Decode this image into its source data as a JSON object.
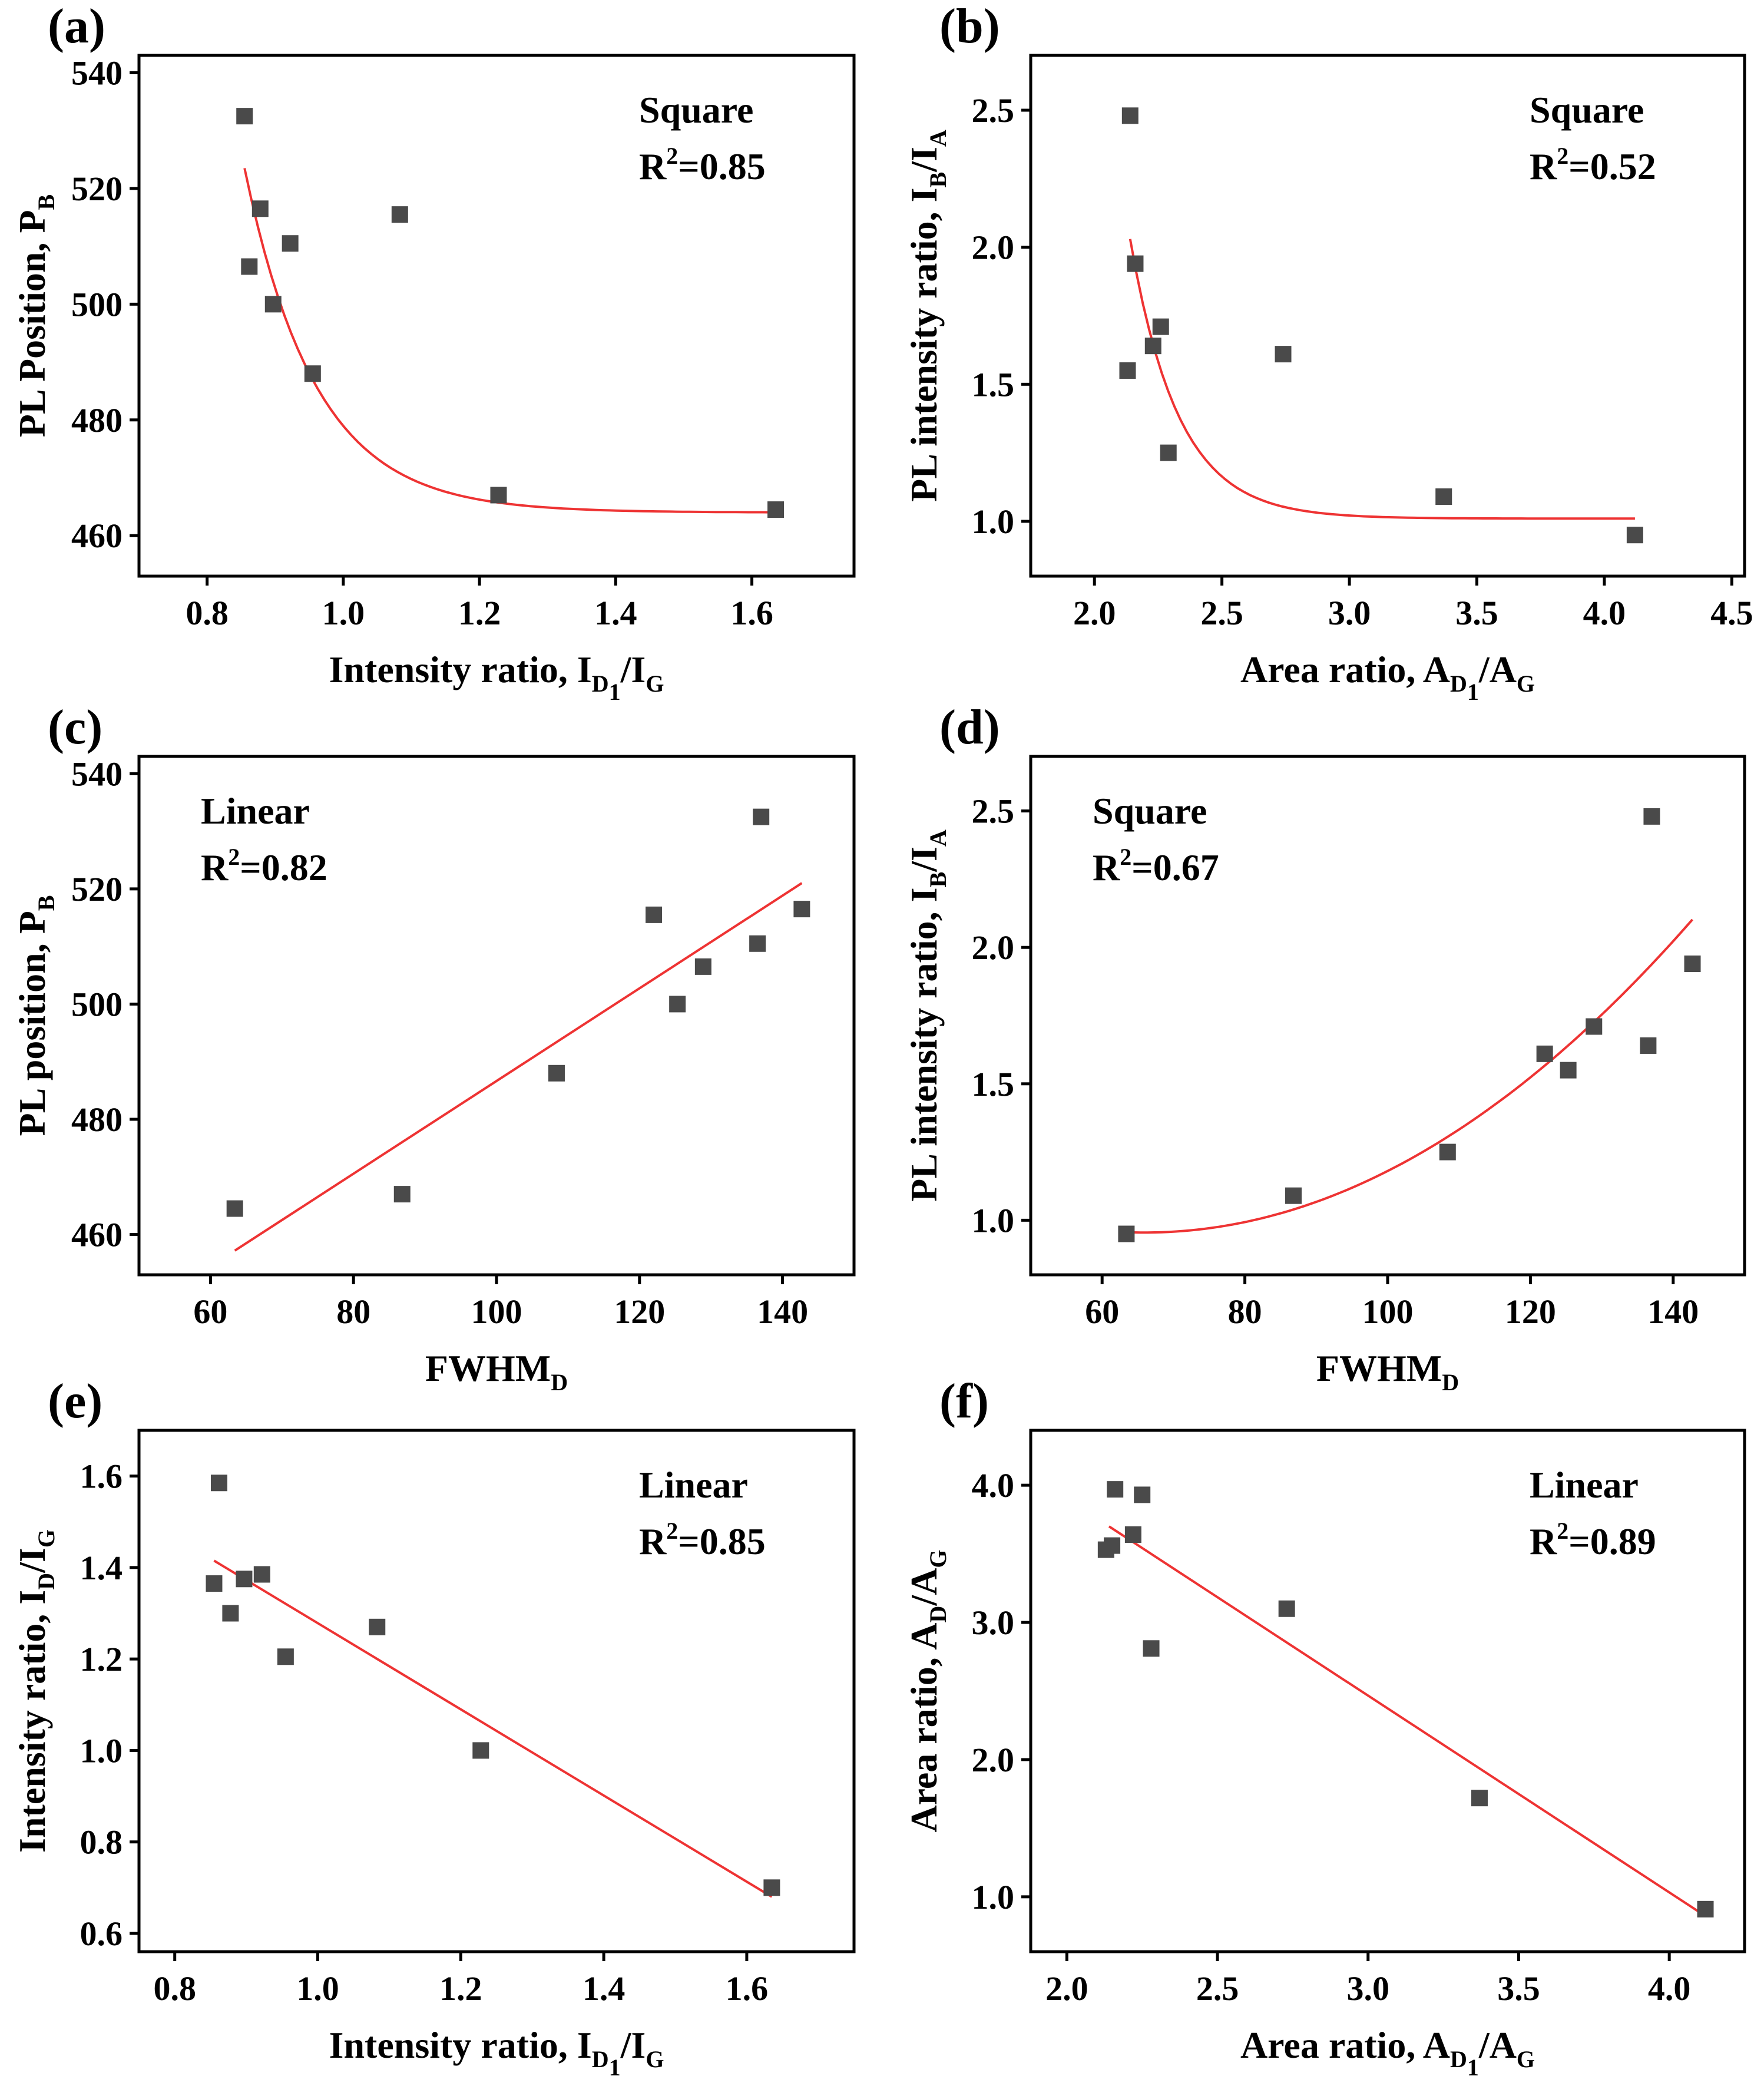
{
  "chart_data": [
    {
      "panel": "(a)",
      "type": "scatter",
      "xlabel": {
        "base": "Intensity ratio, I",
        "sub1": "D",
        "sub1sub": "1",
        "rest": "/I",
        "sub2": "G"
      },
      "ylabel": {
        "base": "PL Position, P",
        "sub": "B"
      },
      "xlim": [
        0.7,
        1.75
      ],
      "ylim": [
        453,
        543
      ],
      "xticks": [
        0.8,
        1.0,
        1.2,
        1.4,
        1.6
      ],
      "xtick_labels": [
        "0.8",
        "1.0",
        "1.2",
        "1.4",
        "1.6"
      ],
      "yticks": [
        460,
        480,
        500,
        520,
        540
      ],
      "ytick_labels": [
        "460",
        "480",
        "500",
        "520",
        "540"
      ],
      "annotation": {
        "fit": "Square",
        "r2_label": "R",
        "r2_sup": "2",
        "r2_value": "=0.85",
        "position": "top-right"
      },
      "points": {
        "x": [
          0.855,
          0.862,
          0.878,
          0.897,
          0.922,
          0.955,
          1.083,
          1.228,
          1.635
        ],
        "y": [
          532.5,
          506.5,
          516.5,
          500.0,
          510.5,
          488.0,
          515.5,
          467.0,
          464.5
        ]
      },
      "fit": {
        "model": "exp",
        "x_range": [
          0.855,
          1.635
        ],
        "a": 464,
        "b": 59.5,
        "c": 0.105
      }
    },
    {
      "panel": "(b)",
      "type": "scatter",
      "xlabel": {
        "base": "Area ratio, A",
        "sub1": "D",
        "sub1sub": "1",
        "rest": "/A",
        "sub2": "G"
      },
      "ylabel": {
        "base": "PL intensity ratio, I",
        "sub": "B",
        "rest": "/I",
        "sub2": "A"
      },
      "xlim": [
        1.75,
        4.55
      ],
      "ylim": [
        0.8,
        2.7
      ],
      "xticks": [
        2.0,
        2.5,
        3.0,
        3.5,
        4.0,
        4.5
      ],
      "xtick_labels": [
        "2.0",
        "2.5",
        "3.0",
        "3.5",
        "4.0",
        "4.5"
      ],
      "yticks": [
        1.0,
        1.5,
        2.0,
        2.5
      ],
      "ytick_labels": [
        "1.0",
        "1.5",
        "2.0",
        "2.5"
      ],
      "annotation": {
        "fit": "Square",
        "r2_label": "R",
        "r2_sup": "2",
        "r2_value": "=0.52",
        "position": "top-right"
      },
      "points": {
        "x": [
          2.14,
          2.16,
          2.13,
          2.23,
          2.26,
          2.29,
          2.74,
          3.37,
          4.12
        ],
        "y": [
          2.48,
          1.94,
          1.55,
          1.64,
          1.71,
          1.25,
          1.61,
          1.09,
          0.95
        ]
      },
      "fit": {
        "model": "exp",
        "x_range": [
          2.14,
          4.12
        ],
        "a": 1.01,
        "b": 1.02,
        "c": 0.19
      }
    },
    {
      "panel": "(c)",
      "type": "scatter",
      "xlabel": {
        "base": "FWHM",
        "sub": "D"
      },
      "ylabel": {
        "base": "PL position, P",
        "sub": "B"
      },
      "xlim": [
        50,
        150
      ],
      "ylim": [
        453,
        543
      ],
      "xticks": [
        60,
        80,
        100,
        120,
        140
      ],
      "xtick_labels": [
        "60",
        "80",
        "100",
        "120",
        "140"
      ],
      "yticks": [
        460,
        480,
        500,
        520,
        540
      ],
      "ytick_labels": [
        "460",
        "480",
        "500",
        "520",
        "540"
      ],
      "annotation": {
        "fit": "Linear",
        "r2_label": "R",
        "r2_sup": "2",
        "r2_value": "=0.82",
        "position": "top-left"
      },
      "points": {
        "x": [
          63.4,
          86.8,
          108.4,
          122.0,
          125.3,
          128.9,
          136.5,
          137.0,
          142.7
        ],
        "y": [
          464.5,
          467.0,
          488.0,
          515.5,
          500.0,
          506.5,
          510.5,
          532.5,
          516.5
        ]
      },
      "fit": {
        "model": "linear",
        "x_range": [
          63.4,
          142.7
        ],
        "y_range": [
          457.2,
          521.0
        ]
      }
    },
    {
      "panel": "(d)",
      "type": "scatter",
      "xlabel": {
        "base": "FWHM",
        "sub": "D"
      },
      "ylabel": {
        "base": "PL intensity ratio, I",
        "sub": "B",
        "rest": "/I",
        "sub2": "A"
      },
      "xlim": [
        50,
        150
      ],
      "ylim": [
        0.8,
        2.7
      ],
      "xticks": [
        60,
        80,
        100,
        120,
        140
      ],
      "xtick_labels": [
        "60",
        "80",
        "100",
        "120",
        "140"
      ],
      "yticks": [
        1.0,
        1.5,
        2.0,
        2.5
      ],
      "ytick_labels": [
        "1.0",
        "1.5",
        "2.0",
        "2.5"
      ],
      "annotation": {
        "fit": "Square",
        "r2_label": "R",
        "r2_sup": "2",
        "r2_value": "=0.67",
        "position": "top-left"
      },
      "points": {
        "x": [
          63.4,
          86.8,
          108.4,
          122.0,
          125.3,
          128.9,
          136.5,
          137.0,
          142.7
        ],
        "y": [
          0.95,
          1.09,
          1.25,
          1.61,
          1.55,
          1.71,
          1.64,
          2.48,
          1.94
        ]
      },
      "fit": {
        "model": "quadratic",
        "x_range": [
          63.4,
          142.7
        ],
        "x0": 66,
        "y0": 0.955,
        "k": 0.000195
      }
    },
    {
      "panel": "(e)",
      "type": "scatter",
      "xlabel": {
        "base": "Intensity ratio, I",
        "sub1": "D",
        "sub1sub": "1",
        "rest": "/I",
        "sub2": "G"
      },
      "ylabel": {
        "base": "Intensity ratio,  I",
        "sub": "D",
        "rest": "/I",
        "sub2": "G"
      },
      "xlim": [
        0.75,
        1.75
      ],
      "ylim": [
        0.56,
        1.7
      ],
      "xticks": [
        0.8,
        1.0,
        1.2,
        1.4,
        1.6
      ],
      "xtick_labels": [
        "0.8",
        "1.0",
        "1.2",
        "1.4",
        "1.6"
      ],
      "yticks": [
        0.6,
        0.8,
        1.0,
        1.2,
        1.4,
        1.6
      ],
      "ytick_labels": [
        "0.6",
        "0.8",
        "1.0",
        "1.2",
        "1.4",
        "1.6"
      ],
      "annotation": {
        "fit": "Linear",
        "r2_label": "R",
        "r2_sup": "2",
        "r2_value": "=0.85",
        "position": "top-right"
      },
      "points": {
        "x": [
          0.855,
          0.862,
          0.878,
          0.897,
          0.922,
          0.955,
          1.083,
          1.228,
          1.635
        ],
        "y": [
          1.365,
          1.585,
          1.3,
          1.375,
          1.385,
          1.205,
          1.27,
          1.0,
          0.7
        ]
      },
      "fit": {
        "model": "linear",
        "x_range": [
          0.855,
          1.635
        ],
        "y_range": [
          1.415,
          0.68
        ]
      }
    },
    {
      "panel": "(f)",
      "type": "scatter",
      "xlabel": {
        "base": "Area ratio, A",
        "sub1": "D",
        "sub1sub": "1",
        "rest": "/A",
        "sub2": "G"
      },
      "ylabel": {
        "base": "Area ratio, A",
        "sub": "D",
        "rest": "/A",
        "sub2": "G"
      },
      "xlim": [
        1.88,
        4.25
      ],
      "ylim": [
        0.6,
        4.4
      ],
      "xticks": [
        2.0,
        2.5,
        3.0,
        3.5,
        4.0
      ],
      "xtick_labels": [
        "2.0",
        "2.5",
        "3.0",
        "3.5",
        "4.0"
      ],
      "yticks": [
        1.0,
        2.0,
        3.0,
        4.0
      ],
      "ytick_labels": [
        "1.0",
        "2.0",
        "3.0",
        "4.0"
      ],
      "annotation": {
        "fit": "Linear",
        "r2_label": "R",
        "r2_sup": "2",
        "r2_value": "=0.89",
        "position": "top-right"
      },
      "points": {
        "x": [
          2.13,
          2.15,
          2.16,
          2.22,
          2.25,
          2.28,
          2.73,
          3.37,
          4.12
        ],
        "y": [
          3.53,
          3.56,
          3.97,
          3.64,
          3.93,
          2.81,
          3.1,
          1.72,
          0.91
        ]
      },
      "fit": {
        "model": "linear",
        "x_range": [
          2.14,
          4.12
        ],
        "y_range": [
          3.7,
          0.86
        ]
      }
    }
  ]
}
